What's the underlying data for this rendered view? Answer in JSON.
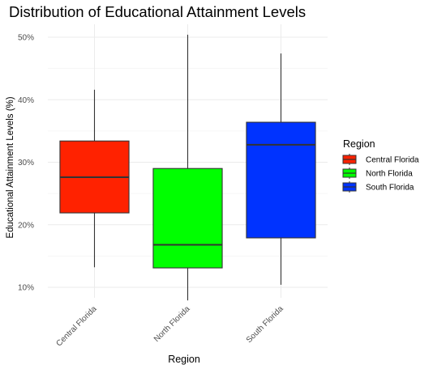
{
  "chart_data": {
    "type": "boxplot",
    "title": "Distribution of Educational Attainment Levels",
    "xlabel": "Region",
    "ylabel": "Educational Attainment Levels (%)",
    "ylim": [
      7,
      54
    ],
    "yticks": [
      10,
      20,
      30,
      40,
      50
    ],
    "ytick_labels": [
      "10%",
      "20%",
      "30%",
      "40%",
      "50%"
    ],
    "categories": [
      "Central Florida",
      "North Florida",
      "South Florida"
    ],
    "boxes": [
      {
        "name": "Central Florida",
        "min": 13.2,
        "q1": 21.9,
        "median": 27.6,
        "q3": 33.4,
        "max": 41.6,
        "color": "#FF2200"
      },
      {
        "name": "North Florida",
        "min": 7.9,
        "q1": 13.1,
        "median": 16.8,
        "q3": 29.0,
        "max": 50.4,
        "color": "#00FF00"
      },
      {
        "name": "South Florida",
        "min": 10.4,
        "q1": 17.9,
        "median": 32.8,
        "q3": 36.4,
        "max": 47.4,
        "color": "#0033FF"
      }
    ],
    "grid": true,
    "legend": {
      "title": "Region",
      "placement": "right",
      "entries": [
        "Central Florida",
        "North Florida",
        "South Florida"
      ]
    }
  }
}
